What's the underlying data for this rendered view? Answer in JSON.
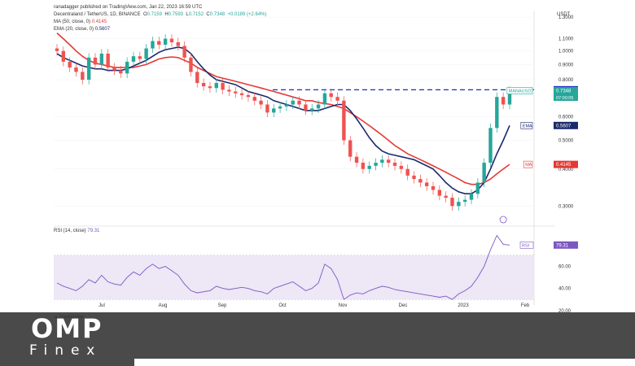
{
  "header": {
    "published": "ranadagger published on TradingView.com, Jan 22, 2023 16:59 UTC",
    "symbol": "Decentraland / TetherUS, 1D, BINANCE",
    "ohlc": {
      "o_label": "O",
      "o": "0.7159",
      "h_label": "H",
      "h": "0.7593",
      "l_label": "L",
      "l": "0.7152",
      "c_label": "C",
      "c": "0.7348",
      "change": "+0.0189 (+2.64%)"
    },
    "ma_label": "MA (50, close, 0)",
    "ma_value": "0.4145",
    "ema_label": "EMA (20, close, 0)",
    "ema_value": "0.5607",
    "rsi_label": "RSI (14, close)",
    "rsi_value": "79.31",
    "currency": "USDT",
    "tv_brand": "TradingView"
  },
  "watermark": {
    "brand": "OMP",
    "sub": "Finex"
  },
  "colors": {
    "up": "#26a69a",
    "down": "#ef5350",
    "ema": "#1a2a6c",
    "ma": "#e53935",
    "rsi": "#7e57c2",
    "rsi_band": "#ede7f6",
    "resistance": "#1a2fbf"
  },
  "chart_data": [
    {
      "type": "candlestick",
      "title": "Decentraland / TetherUS, 1D, BINANCE",
      "ylabel": "USDT",
      "y_scale": "log",
      "ylim": [
        0.26,
        1.36
      ],
      "x_ticks": [
        "Jul",
        "Aug",
        "Sep",
        "Oct",
        "Nov",
        "Dec",
        "2023",
        "Feb"
      ],
      "y_ticks": [
        "1.3000",
        "1.1000",
        "1.0000",
        "0.9000",
        "0.8000",
        "0.6000",
        "0.5000",
        "0.4000",
        "0.3000"
      ],
      "price_labels": [
        {
          "label": "",
          "value": "0.7400",
          "color": "#1a2fbf"
        },
        {
          "label": "MANAUSDT",
          "value": "0.7348",
          "sub": "07:00:05",
          "color": "#26a69a"
        },
        {
          "label": "EMA",
          "value": "0.5607",
          "color": "#1a2a6c"
        },
        {
          "label": "MA",
          "value": "0.4145",
          "color": "#e53935"
        }
      ],
      "resistance_level": 0.74,
      "series": [
        {
          "name": "EMA (20, close, 0)",
          "values": [
            0.98,
            0.95,
            0.93,
            0.91,
            0.89,
            0.88,
            0.87,
            0.87,
            0.86,
            0.86,
            0.86,
            0.87,
            0.89,
            0.91,
            0.93,
            0.96,
            0.99,
            1.01,
            1.02,
            1.03,
            1.02,
            0.98,
            0.92,
            0.87,
            0.83,
            0.8,
            0.79,
            0.78,
            0.77,
            0.75,
            0.73,
            0.72,
            0.71,
            0.7,
            0.68,
            0.67,
            0.66,
            0.65,
            0.64,
            0.63,
            0.63,
            0.63,
            0.64,
            0.65,
            0.66,
            0.66,
            0.63,
            0.59,
            0.55,
            0.51,
            0.48,
            0.46,
            0.45,
            0.445,
            0.44,
            0.435,
            0.43,
            0.42,
            0.41,
            0.4,
            0.38,
            0.36,
            0.345,
            0.335,
            0.33,
            0.33,
            0.34,
            0.36,
            0.4,
            0.45,
            0.5,
            0.5607
          ]
        },
        {
          "name": "MA (50, close, 0)",
          "values": [
            1.15,
            1.1,
            1.05,
            1.0,
            0.96,
            0.93,
            0.91,
            0.9,
            0.89,
            0.88,
            0.88,
            0.88,
            0.88,
            0.89,
            0.9,
            0.92,
            0.94,
            0.95,
            0.955,
            0.95,
            0.93,
            0.91,
            0.88,
            0.86,
            0.84,
            0.82,
            0.81,
            0.8,
            0.79,
            0.78,
            0.77,
            0.76,
            0.75,
            0.74,
            0.73,
            0.72,
            0.71,
            0.7,
            0.69,
            0.68,
            0.68,
            0.67,
            0.665,
            0.66,
            0.65,
            0.64,
            0.62,
            0.6,
            0.58,
            0.56,
            0.54,
            0.52,
            0.5,
            0.48,
            0.465,
            0.45,
            0.44,
            0.43,
            0.42,
            0.41,
            0.4,
            0.39,
            0.38,
            0.37,
            0.36,
            0.355,
            0.355,
            0.36,
            0.37,
            0.385,
            0.4,
            0.4145
          ]
        },
        {
          "name": "Close",
          "values": [
            1.0,
            0.92,
            0.88,
            0.85,
            0.8,
            0.95,
            0.9,
            0.98,
            0.88,
            0.86,
            0.84,
            0.92,
            0.96,
            0.94,
            1.02,
            1.08,
            1.05,
            1.1,
            1.07,
            1.04,
            0.95,
            0.85,
            0.78,
            0.76,
            0.75,
            0.78,
            0.74,
            0.73,
            0.72,
            0.71,
            0.7,
            0.68,
            0.66,
            0.62,
            0.64,
            0.65,
            0.66,
            0.68,
            0.66,
            0.63,
            0.64,
            0.66,
            0.72,
            0.7,
            0.68,
            0.5,
            0.44,
            0.42,
            0.4,
            0.41,
            0.42,
            0.43,
            0.42,
            0.41,
            0.4,
            0.38,
            0.37,
            0.36,
            0.35,
            0.34,
            0.325,
            0.32,
            0.3,
            0.31,
            0.315,
            0.33,
            0.36,
            0.42,
            0.55,
            0.7,
            0.66,
            0.7348
          ]
        }
      ]
    },
    {
      "type": "line",
      "title": "RSI (14, close)",
      "ylim": [
        25,
        95
      ],
      "y_ticks": [
        "60.00",
        "40.00",
        "20.00"
      ],
      "band": [
        30,
        70
      ],
      "series": [
        {
          "name": "RSI (14, close)",
          "values": [
            45,
            42,
            40,
            38,
            42,
            48,
            45,
            52,
            46,
            44,
            43,
            50,
            55,
            52,
            58,
            62,
            58,
            60,
            56,
            52,
            44,
            38,
            36,
            37,
            38,
            42,
            40,
            39,
            40,
            41,
            40,
            38,
            37,
            35,
            40,
            42,
            44,
            46,
            42,
            38,
            40,
            45,
            62,
            58,
            48,
            30,
            34,
            36,
            35,
            38,
            40,
            42,
            41,
            39,
            38,
            37,
            36,
            35,
            34,
            33,
            32,
            33,
            30,
            35,
            38,
            42,
            50,
            60,
            75,
            88,
            80,
            79.31
          ]
        }
      ]
    }
  ]
}
